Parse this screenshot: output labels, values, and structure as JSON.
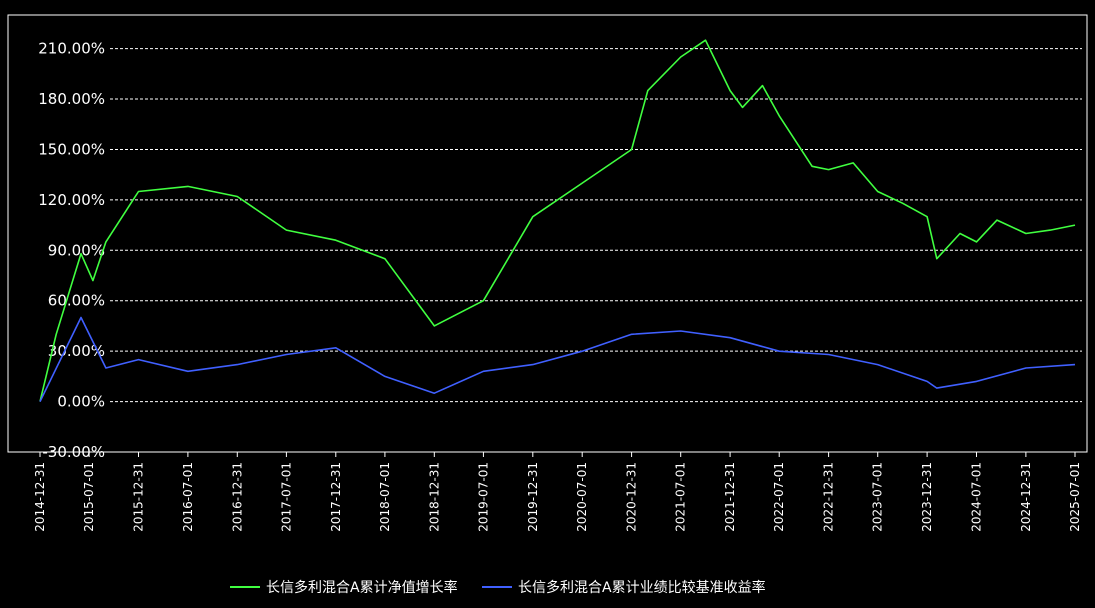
{
  "chart_data": {
    "type": "line",
    "title": "",
    "xlabel": "",
    "ylabel": "",
    "ylim": [
      -30,
      230
    ],
    "yticks": [
      "-30.00%",
      "0.00%",
      "30.00%",
      "60.00%",
      "90.00%",
      "120.00%",
      "150.00%",
      "180.00%",
      "210.00%"
    ],
    "x_tick_labels": [
      "2014-12-31",
      "2015-07-01",
      "2015-12-31",
      "2016-07-01",
      "2016-12-31",
      "2017-07-01",
      "2017-12-31",
      "2018-07-01",
      "2018-12-31",
      "2019-07-01",
      "2019-12-31",
      "2020-07-01",
      "2020-12-31",
      "2021-07-01",
      "2021-12-31",
      "2022-07-01",
      "2022-12-31",
      "2023-07-01",
      "2023-12-31",
      "2024-07-01",
      "2024-12-31",
      "2025-07-01"
    ],
    "grid": true,
    "legend_position": "bottom",
    "colors": {
      "background": "#000000",
      "fund": "#40ff40",
      "benchmark": "#4060ff",
      "grid": "#ffffff",
      "text": "#ffffff"
    },
    "series": [
      {
        "name": "长信多利混合A累计净值增长率",
        "color": "#40ff40",
        "x": [
          "2014-12-31",
          "2015-03-01",
          "2015-06-01",
          "2015-07-15",
          "2015-09-01",
          "2015-12-31",
          "2016-07-01",
          "2016-12-31",
          "2017-07-01",
          "2017-12-31",
          "2018-07-01",
          "2018-12-31",
          "2019-07-01",
          "2019-12-31",
          "2020-07-01",
          "2020-12-31",
          "2021-03-01",
          "2021-07-01",
          "2021-10-01",
          "2021-12-31",
          "2022-02-15",
          "2022-04-30",
          "2022-07-01",
          "2022-10-31",
          "2022-12-31",
          "2023-04-01",
          "2023-07-01",
          "2023-10-01",
          "2023-12-31",
          "2024-02-05",
          "2024-05-01",
          "2024-07-01",
          "2024-09-15",
          "2024-12-31",
          "2025-04-01",
          "2025-07-01"
        ],
        "values": [
          0,
          40,
          88,
          72,
          95,
          125,
          128,
          122,
          102,
          96,
          85,
          45,
          60,
          110,
          130,
          150,
          185,
          205,
          215,
          185,
          175,
          188,
          170,
          140,
          138,
          142,
          125,
          118,
          110,
          85,
          100,
          95,
          108,
          100,
          102,
          105
        ]
      },
      {
        "name": "长信多利混合A累计业绩比较基准收益率",
        "color": "#4060ff",
        "x": [
          "2014-12-31",
          "2015-06-01",
          "2015-09-01",
          "2015-12-31",
          "2016-07-01",
          "2016-12-31",
          "2017-07-01",
          "2017-12-31",
          "2018-07-01",
          "2018-12-31",
          "2019-07-01",
          "2019-12-31",
          "2020-07-01",
          "2020-12-31",
          "2021-07-01",
          "2021-12-31",
          "2022-07-01",
          "2022-12-31",
          "2023-07-01",
          "2023-12-31",
          "2024-02-05",
          "2024-07-01",
          "2024-12-31",
          "2025-07-01"
        ],
        "values": [
          0,
          50,
          20,
          25,
          18,
          22,
          28,
          32,
          15,
          5,
          18,
          22,
          30,
          40,
          42,
          38,
          30,
          28,
          22,
          12,
          8,
          12,
          20,
          22
        ]
      }
    ]
  }
}
